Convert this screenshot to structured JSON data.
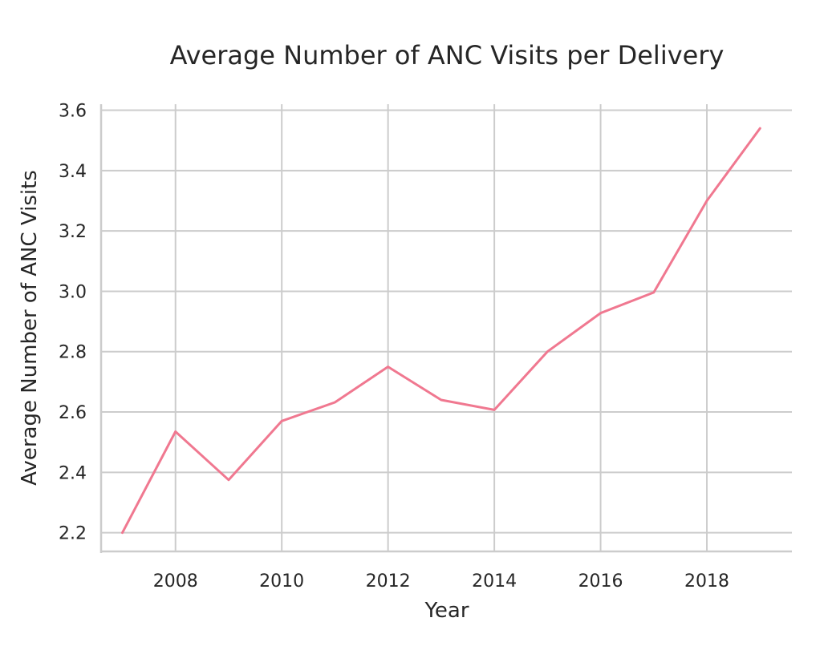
{
  "chart_data": {
    "type": "line",
    "title": "Average Number of ANC Visits per Delivery",
    "xlabel": "Year",
    "ylabel": "Average Number of ANC Visits",
    "x": [
      2007,
      2008,
      2009,
      2010,
      2011,
      2012,
      2013,
      2014,
      2015,
      2016,
      2017,
      2018,
      2019
    ],
    "series": [
      {
        "values": [
          2.2,
          2.535,
          2.375,
          2.57,
          2.632,
          2.75,
          2.64,
          2.607,
          2.8,
          2.928,
          2.996,
          3.3,
          3.54
        ],
        "color": "#f07890"
      }
    ],
    "xticks": [
      "2008",
      "2010",
      "2012",
      "2014",
      "2016",
      "2018"
    ],
    "yticks": [
      "2.2",
      "2.4",
      "2.6",
      "2.8",
      "3.0",
      "3.2",
      "3.4",
      "3.6"
    ],
    "xlim": [
      2006.6,
      2019.6
    ],
    "ylim": [
      2.138,
      3.62
    ],
    "grid": true
  }
}
